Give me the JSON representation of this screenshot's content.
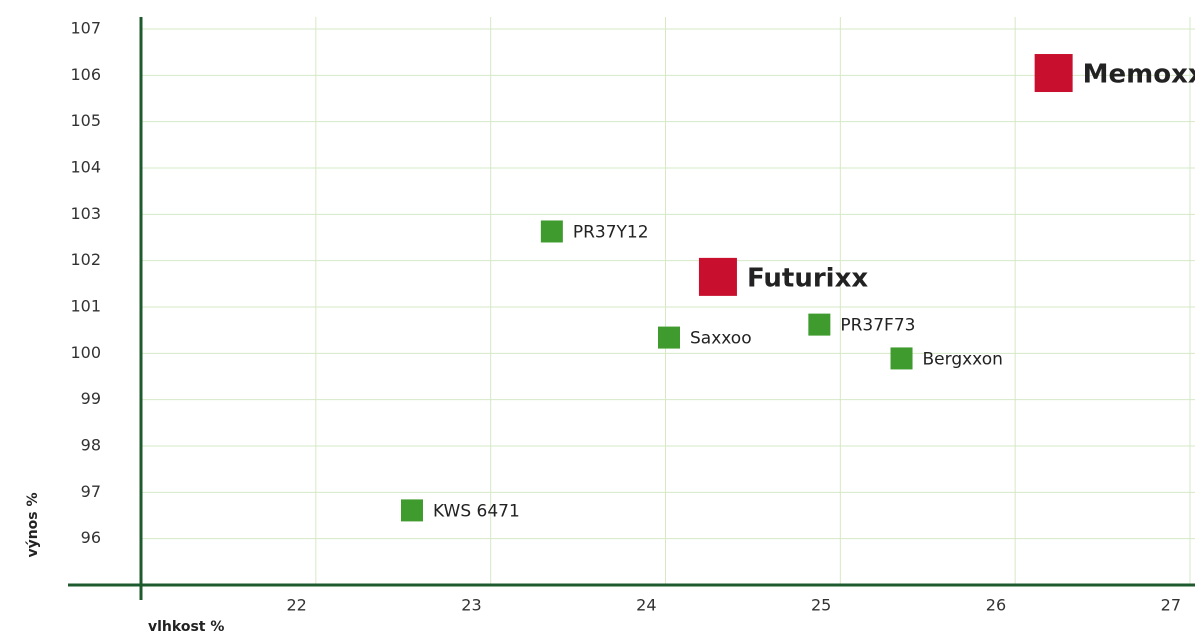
{
  "chart_data": {
    "type": "scatter",
    "x_label": "vlhkost %",
    "y_label": "výnos %",
    "xlim": [
      21,
      27
    ],
    "ylim": [
      95,
      107
    ],
    "xticks": [
      22,
      23,
      24,
      25,
      26,
      27
    ],
    "yticks": [
      96,
      97,
      98,
      99,
      100,
      101,
      102,
      103,
      104,
      105,
      106,
      107
    ],
    "grid": true,
    "series": [
      {
        "color": "#3f9b2e",
        "labels": [
          "PR37Y12",
          "Saxxoo",
          "PR37F73",
          "Bergxxon",
          "KWS 6471"
        ],
        "x": [
          23.35,
          24.02,
          24.88,
          25.35,
          22.55
        ],
        "y": [
          102.63,
          100.34,
          100.62,
          99.89,
          96.61
        ]
      },
      {
        "color": "#c8102e",
        "labels": [
          "Futurixx",
          "Memoxx"
        ],
        "x": [
          24.3,
          26.22
        ],
        "y": [
          101.65,
          106.05
        ]
      }
    ]
  }
}
